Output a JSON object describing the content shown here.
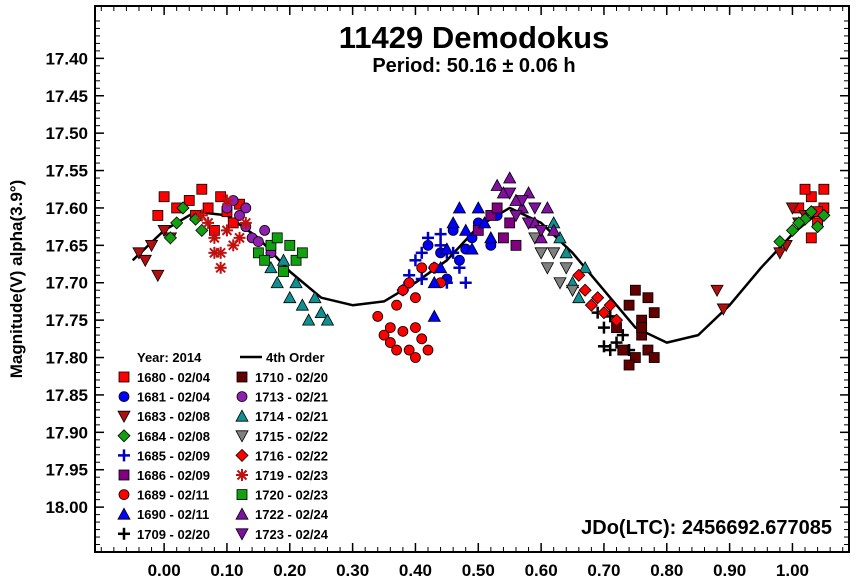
{
  "chart_data": {
    "type": "scatter",
    "title": "11429 Demodokus",
    "subtitle": "Period: 50.16 ± 0.06 h",
    "ylabel": "Magnitude(V) alpha(3.9°)",
    "xlabel": "",
    "annotation": "JDo(LTC): 2456692.677085",
    "xlim": [
      -0.11,
      1.09
    ],
    "ylim": [
      18.06,
      17.33
    ],
    "x_ticks": [
      "0.00",
      "0.10",
      "0.20",
      "0.30",
      "0.40",
      "0.50",
      "0.60",
      "0.70",
      "0.80",
      "0.90",
      "1.00"
    ],
    "y_ticks": [
      "17.40",
      "17.45",
      "17.50",
      "17.55",
      "17.60",
      "17.65",
      "17.70",
      "17.75",
      "17.80",
      "17.85",
      "17.90",
      "17.95",
      "18.00"
    ],
    "grid": false,
    "legend": {
      "placement": "lower-left",
      "header_left": "Year: 2014",
      "header_right": "4th Order"
    },
    "fit": {
      "name": "4th Order",
      "color": "#000000",
      "points": [
        [
          -0.05,
          17.67
        ],
        [
          0.0,
          17.63
        ],
        [
          0.05,
          17.605
        ],
        [
          0.1,
          17.61
        ],
        [
          0.15,
          17.64
        ],
        [
          0.2,
          17.685
        ],
        [
          0.25,
          17.72
        ],
        [
          0.3,
          17.73
        ],
        [
          0.35,
          17.725
        ],
        [
          0.4,
          17.7
        ],
        [
          0.45,
          17.67
        ],
        [
          0.5,
          17.625
        ],
        [
          0.55,
          17.6
        ],
        [
          0.6,
          17.62
        ],
        [
          0.65,
          17.66
        ],
        [
          0.7,
          17.71
        ],
        [
          0.75,
          17.76
        ],
        [
          0.8,
          17.78
        ],
        [
          0.85,
          17.77
        ],
        [
          0.9,
          17.73
        ],
        [
          0.95,
          17.68
        ],
        [
          1.0,
          17.635
        ],
        [
          1.05,
          17.6
        ]
      ]
    },
    "series": [
      {
        "name": "1680 - 02/04",
        "marker": "square",
        "color": "#ff0000",
        "points": [
          [
            -0.01,
            17.61
          ],
          [
            0.0,
            17.585
          ],
          [
            0.02,
            17.6
          ],
          [
            0.04,
            17.59
          ],
          [
            0.05,
            17.61
          ],
          [
            0.06,
            17.575
          ],
          [
            0.07,
            17.6
          ],
          [
            0.08,
            17.63
          ],
          [
            0.09,
            17.585
          ],
          [
            0.1,
            17.605
          ],
          [
            0.11,
            17.62
          ],
          [
            0.12,
            17.595
          ],
          [
            1.03,
            17.585
          ],
          [
            1.04,
            17.62
          ],
          [
            1.05,
            17.6
          ],
          [
            1.03,
            17.64
          ],
          [
            1.02,
            17.575
          ],
          [
            1.05,
            17.575
          ],
          [
            1.04,
            17.605
          ],
          [
            1.01,
            17.6
          ]
        ]
      },
      {
        "name": "1681 - 02/04",
        "marker": "circle",
        "color": "#0000ff",
        "points": [
          [
            0.42,
            17.65
          ],
          [
            0.44,
            17.66
          ],
          [
            0.46,
            17.63
          ],
          [
            0.47,
            17.67
          ],
          [
            0.49,
            17.64
          ],
          [
            0.5,
            17.62
          ],
          [
            0.52,
            17.65
          ],
          [
            0.53,
            17.61
          ],
          [
            0.45,
            17.695
          ],
          [
            0.48,
            17.655
          ]
        ]
      },
      {
        "name": "1683 - 02/08",
        "marker": "triangle-down",
        "color": "#b01010",
        "points": [
          [
            -0.04,
            17.66
          ],
          [
            -0.03,
            17.67
          ],
          [
            -0.02,
            17.65
          ],
          [
            -0.01,
            17.69
          ],
          [
            0.0,
            17.63
          ],
          [
            0.01,
            17.64
          ],
          [
            0.98,
            17.66
          ],
          [
            0.99,
            17.65
          ],
          [
            1.0,
            17.6
          ],
          [
            1.01,
            17.62
          ],
          [
            1.02,
            17.61
          ],
          [
            0.89,
            17.735
          ],
          [
            0.88,
            17.71
          ]
        ]
      },
      {
        "name": "1684 - 02/08",
        "marker": "diamond",
        "color": "#10a010",
        "points": [
          [
            0.01,
            17.64
          ],
          [
            0.02,
            17.62
          ],
          [
            0.03,
            17.6
          ],
          [
            0.05,
            17.615
          ],
          [
            0.06,
            17.63
          ],
          [
            1.0,
            17.63
          ],
          [
            1.02,
            17.615
          ],
          [
            1.03,
            17.605
          ],
          [
            1.04,
            17.625
          ],
          [
            1.05,
            17.61
          ],
          [
            0.98,
            17.645
          ],
          [
            1.01,
            17.62
          ]
        ]
      },
      {
        "name": "1685 - 02/09",
        "marker": "plus",
        "color": "#0000c0",
        "points": [
          [
            0.38,
            17.71
          ],
          [
            0.39,
            17.69
          ],
          [
            0.4,
            17.67
          ],
          [
            0.41,
            17.66
          ],
          [
            0.42,
            17.64
          ],
          [
            0.43,
            17.68
          ],
          [
            0.44,
            17.65
          ],
          [
            0.45,
            17.7
          ],
          [
            0.46,
            17.66
          ],
          [
            0.47,
            17.68
          ],
          [
            0.48,
            17.7
          ],
          [
            0.44,
            17.635
          ],
          [
            0.45,
            17.66
          ],
          [
            0.41,
            17.695
          ],
          [
            0.39,
            17.7
          ]
        ]
      },
      {
        "name": "1686 - 02/09",
        "marker": "square",
        "color": "#800080",
        "points": [
          [
            0.5,
            17.63
          ],
          [
            0.52,
            17.61
          ],
          [
            0.54,
            17.64
          ],
          [
            0.55,
            17.62
          ],
          [
            0.56,
            17.65
          ],
          [
            0.53,
            17.6
          ]
        ]
      },
      {
        "name": "1689 - 02/11",
        "marker": "circle",
        "color": "#ff0000",
        "points": [
          [
            0.34,
            17.745
          ],
          [
            0.35,
            17.77
          ],
          [
            0.36,
            17.78
          ],
          [
            0.37,
            17.79
          ],
          [
            0.38,
            17.765
          ],
          [
            0.39,
            17.79
          ],
          [
            0.4,
            17.8
          ],
          [
            0.41,
            17.775
          ],
          [
            0.42,
            17.79
          ],
          [
            0.37,
            17.73
          ],
          [
            0.38,
            17.71
          ],
          [
            0.39,
            17.7
          ],
          [
            0.4,
            17.72
          ],
          [
            0.41,
            17.68
          ],
          [
            0.43,
            17.68
          ],
          [
            0.44,
            17.7
          ],
          [
            0.36,
            17.76
          ],
          [
            0.4,
            17.76
          ]
        ]
      },
      {
        "name": "1690 - 02/11",
        "marker": "triangle-up",
        "color": "#0000ff",
        "points": [
          [
            0.43,
            17.745
          ],
          [
            0.44,
            17.68
          ],
          [
            0.45,
            17.655
          ],
          [
            0.46,
            17.62
          ],
          [
            0.47,
            17.6
          ],
          [
            0.48,
            17.63
          ],
          [
            0.49,
            17.655
          ],
          [
            0.5,
            17.6
          ],
          [
            0.51,
            17.62
          ],
          [
            0.52,
            17.64
          ],
          [
            0.43,
            17.7
          ]
        ]
      },
      {
        "name": "1709 - 02/20",
        "marker": "plus",
        "color": "#000000",
        "points": [
          [
            0.69,
            17.74
          ],
          [
            0.7,
            17.76
          ],
          [
            0.71,
            17.745
          ],
          [
            0.72,
            17.78
          ],
          [
            0.73,
            17.77
          ],
          [
            0.74,
            17.79
          ],
          [
            0.7,
            17.785
          ],
          [
            0.71,
            17.79
          ]
        ]
      },
      {
        "name": "1710 - 02/20",
        "marker": "square",
        "color": "#600000",
        "points": [
          [
            0.74,
            17.73
          ],
          [
            0.75,
            17.71
          ],
          [
            0.76,
            17.75
          ],
          [
            0.77,
            17.72
          ],
          [
            0.78,
            17.74
          ],
          [
            0.76,
            17.77
          ],
          [
            0.77,
            17.79
          ],
          [
            0.75,
            17.8
          ],
          [
            0.74,
            17.81
          ],
          [
            0.78,
            17.8
          ],
          [
            0.72,
            17.76
          ],
          [
            0.73,
            17.79
          ],
          [
            0.76,
            17.76
          ]
        ]
      },
      {
        "name": "1713 - 02/21",
        "marker": "circle",
        "color": "#9020b0",
        "points": [
          [
            0.1,
            17.6
          ],
          [
            0.12,
            17.61
          ],
          [
            0.13,
            17.625
          ],
          [
            0.14,
            17.64
          ],
          [
            0.15,
            17.645
          ],
          [
            0.16,
            17.63
          ],
          [
            0.17,
            17.66
          ],
          [
            0.11,
            17.59
          ],
          [
            0.13,
            17.6
          ]
        ]
      },
      {
        "name": "1714 - 02/21",
        "marker": "triangle-up",
        "color": "#109090",
        "points": [
          [
            0.17,
            17.68
          ],
          [
            0.18,
            17.7
          ],
          [
            0.19,
            17.67
          ],
          [
            0.2,
            17.72
          ],
          [
            0.21,
            17.7
          ],
          [
            0.22,
            17.73
          ],
          [
            0.23,
            17.75
          ],
          [
            0.24,
            17.72
          ],
          [
            0.25,
            17.74
          ],
          [
            0.26,
            17.75
          ],
          [
            0.62,
            17.62
          ],
          [
            0.63,
            17.64
          ],
          [
            0.64,
            17.66
          ],
          [
            0.65,
            17.7
          ],
          [
            0.66,
            17.72
          ],
          [
            0.67,
            17.68
          ]
        ]
      },
      {
        "name": "1715 - 02/22",
        "marker": "triangle-down",
        "color": "#808080",
        "points": [
          [
            0.58,
            17.62
          ],
          [
            0.59,
            17.64
          ],
          [
            0.6,
            17.66
          ],
          [
            0.61,
            17.68
          ],
          [
            0.62,
            17.66
          ],
          [
            0.63,
            17.7
          ],
          [
            0.64,
            17.68
          ],
          [
            0.65,
            17.71
          ]
        ]
      },
      {
        "name": "1716 - 02/22",
        "marker": "diamond",
        "color": "#ff0000",
        "points": [
          [
            0.66,
            17.69
          ],
          [
            0.67,
            17.71
          ],
          [
            0.68,
            17.73
          ],
          [
            0.69,
            17.72
          ],
          [
            0.7,
            17.74
          ],
          [
            0.71,
            17.73
          ],
          [
            0.72,
            17.75
          ]
        ]
      },
      {
        "name": "1719 - 02/23",
        "marker": "asterisk",
        "color": "#c01010",
        "points": [
          [
            0.06,
            17.61
          ],
          [
            0.07,
            17.62
          ],
          [
            0.08,
            17.64
          ],
          [
            0.09,
            17.66
          ],
          [
            0.1,
            17.63
          ],
          [
            0.11,
            17.65
          ],
          [
            0.12,
            17.64
          ],
          [
            0.13,
            17.62
          ],
          [
            0.1,
            17.59
          ],
          [
            0.08,
            17.66
          ],
          [
            0.09,
            17.68
          ]
        ]
      },
      {
        "name": "1720 - 02/23",
        "marker": "square",
        "color": "#10a010",
        "points": [
          [
            0.15,
            17.66
          ],
          [
            0.16,
            17.67
          ],
          [
            0.17,
            17.65
          ],
          [
            0.18,
            17.64
          ],
          [
            0.19,
            17.685
          ],
          [
            0.2,
            17.65
          ],
          [
            0.21,
            17.67
          ],
          [
            0.22,
            17.66
          ]
        ]
      },
      {
        "name": "1722 - 02/24",
        "marker": "triangle-up",
        "color": "#8010a0",
        "points": [
          [
            0.53,
            17.57
          ],
          [
            0.54,
            17.58
          ],
          [
            0.55,
            17.56
          ],
          [
            0.56,
            17.59
          ],
          [
            0.57,
            17.6
          ],
          [
            0.58,
            17.58
          ],
          [
            0.59,
            17.62
          ],
          [
            0.6,
            17.64
          ],
          [
            0.61,
            17.6
          ],
          [
            0.62,
            17.63
          ]
        ]
      },
      {
        "name": "1723 - 02/24",
        "marker": "triangle-down",
        "color": "#8010a0",
        "points": [
          [
            0.55,
            17.58
          ],
          [
            0.56,
            17.61
          ],
          [
            0.57,
            17.59
          ],
          [
            0.58,
            17.62
          ],
          [
            0.59,
            17.6
          ],
          [
            0.6,
            17.63
          ]
        ]
      }
    ]
  }
}
